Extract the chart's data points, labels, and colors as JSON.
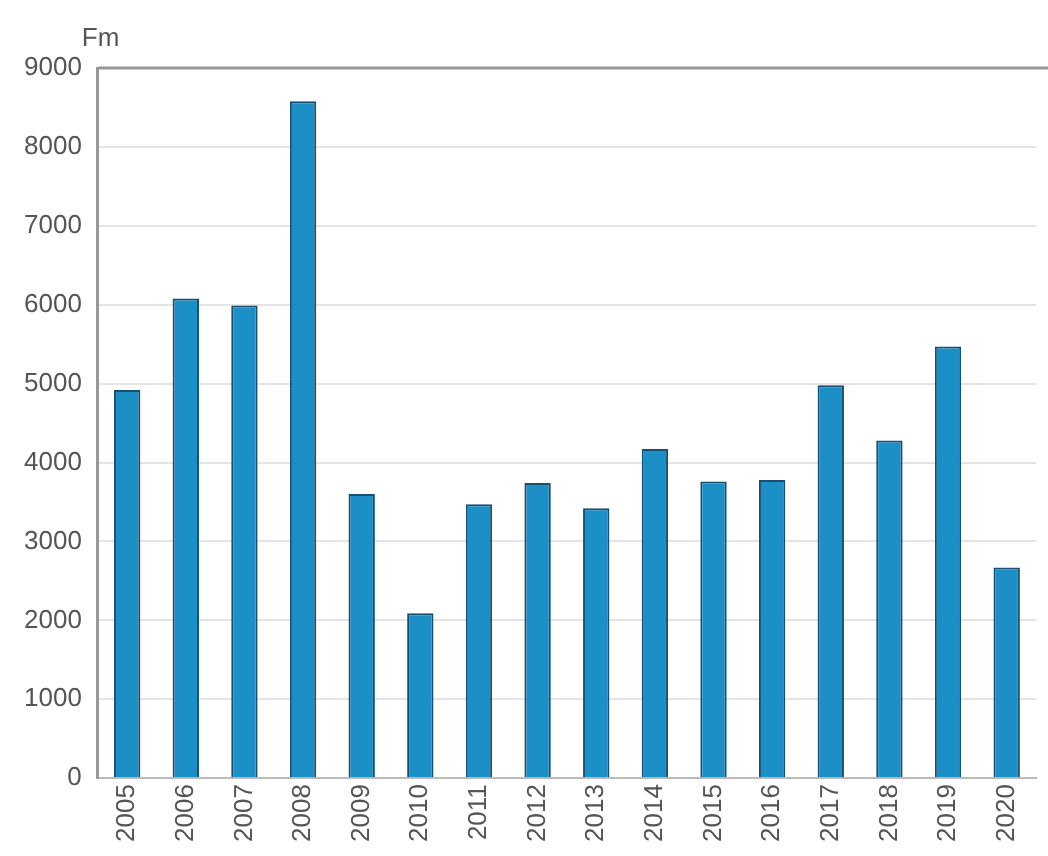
{
  "chart_data": {
    "type": "bar",
    "ylabel": "Fm",
    "categories": [
      "2005",
      "2006",
      "2007",
      "2008",
      "2009",
      "2010",
      "2011",
      "2012",
      "2013",
      "2014",
      "2015",
      "2016",
      "2017",
      "2018",
      "2019",
      "2020"
    ],
    "values": [
      4920,
      6080,
      5990,
      8580,
      3600,
      2090,
      3470,
      3740,
      3420,
      4170,
      3760,
      3780,
      4980,
      4280,
      5470,
      2670
    ],
    "color": "#1b8fc6",
    "ylim": [
      0,
      9000
    ],
    "yticks": [
      0,
      1000,
      2000,
      3000,
      4000,
      5000,
      6000,
      7000,
      8000,
      9000
    ],
    "grid": "y"
  }
}
